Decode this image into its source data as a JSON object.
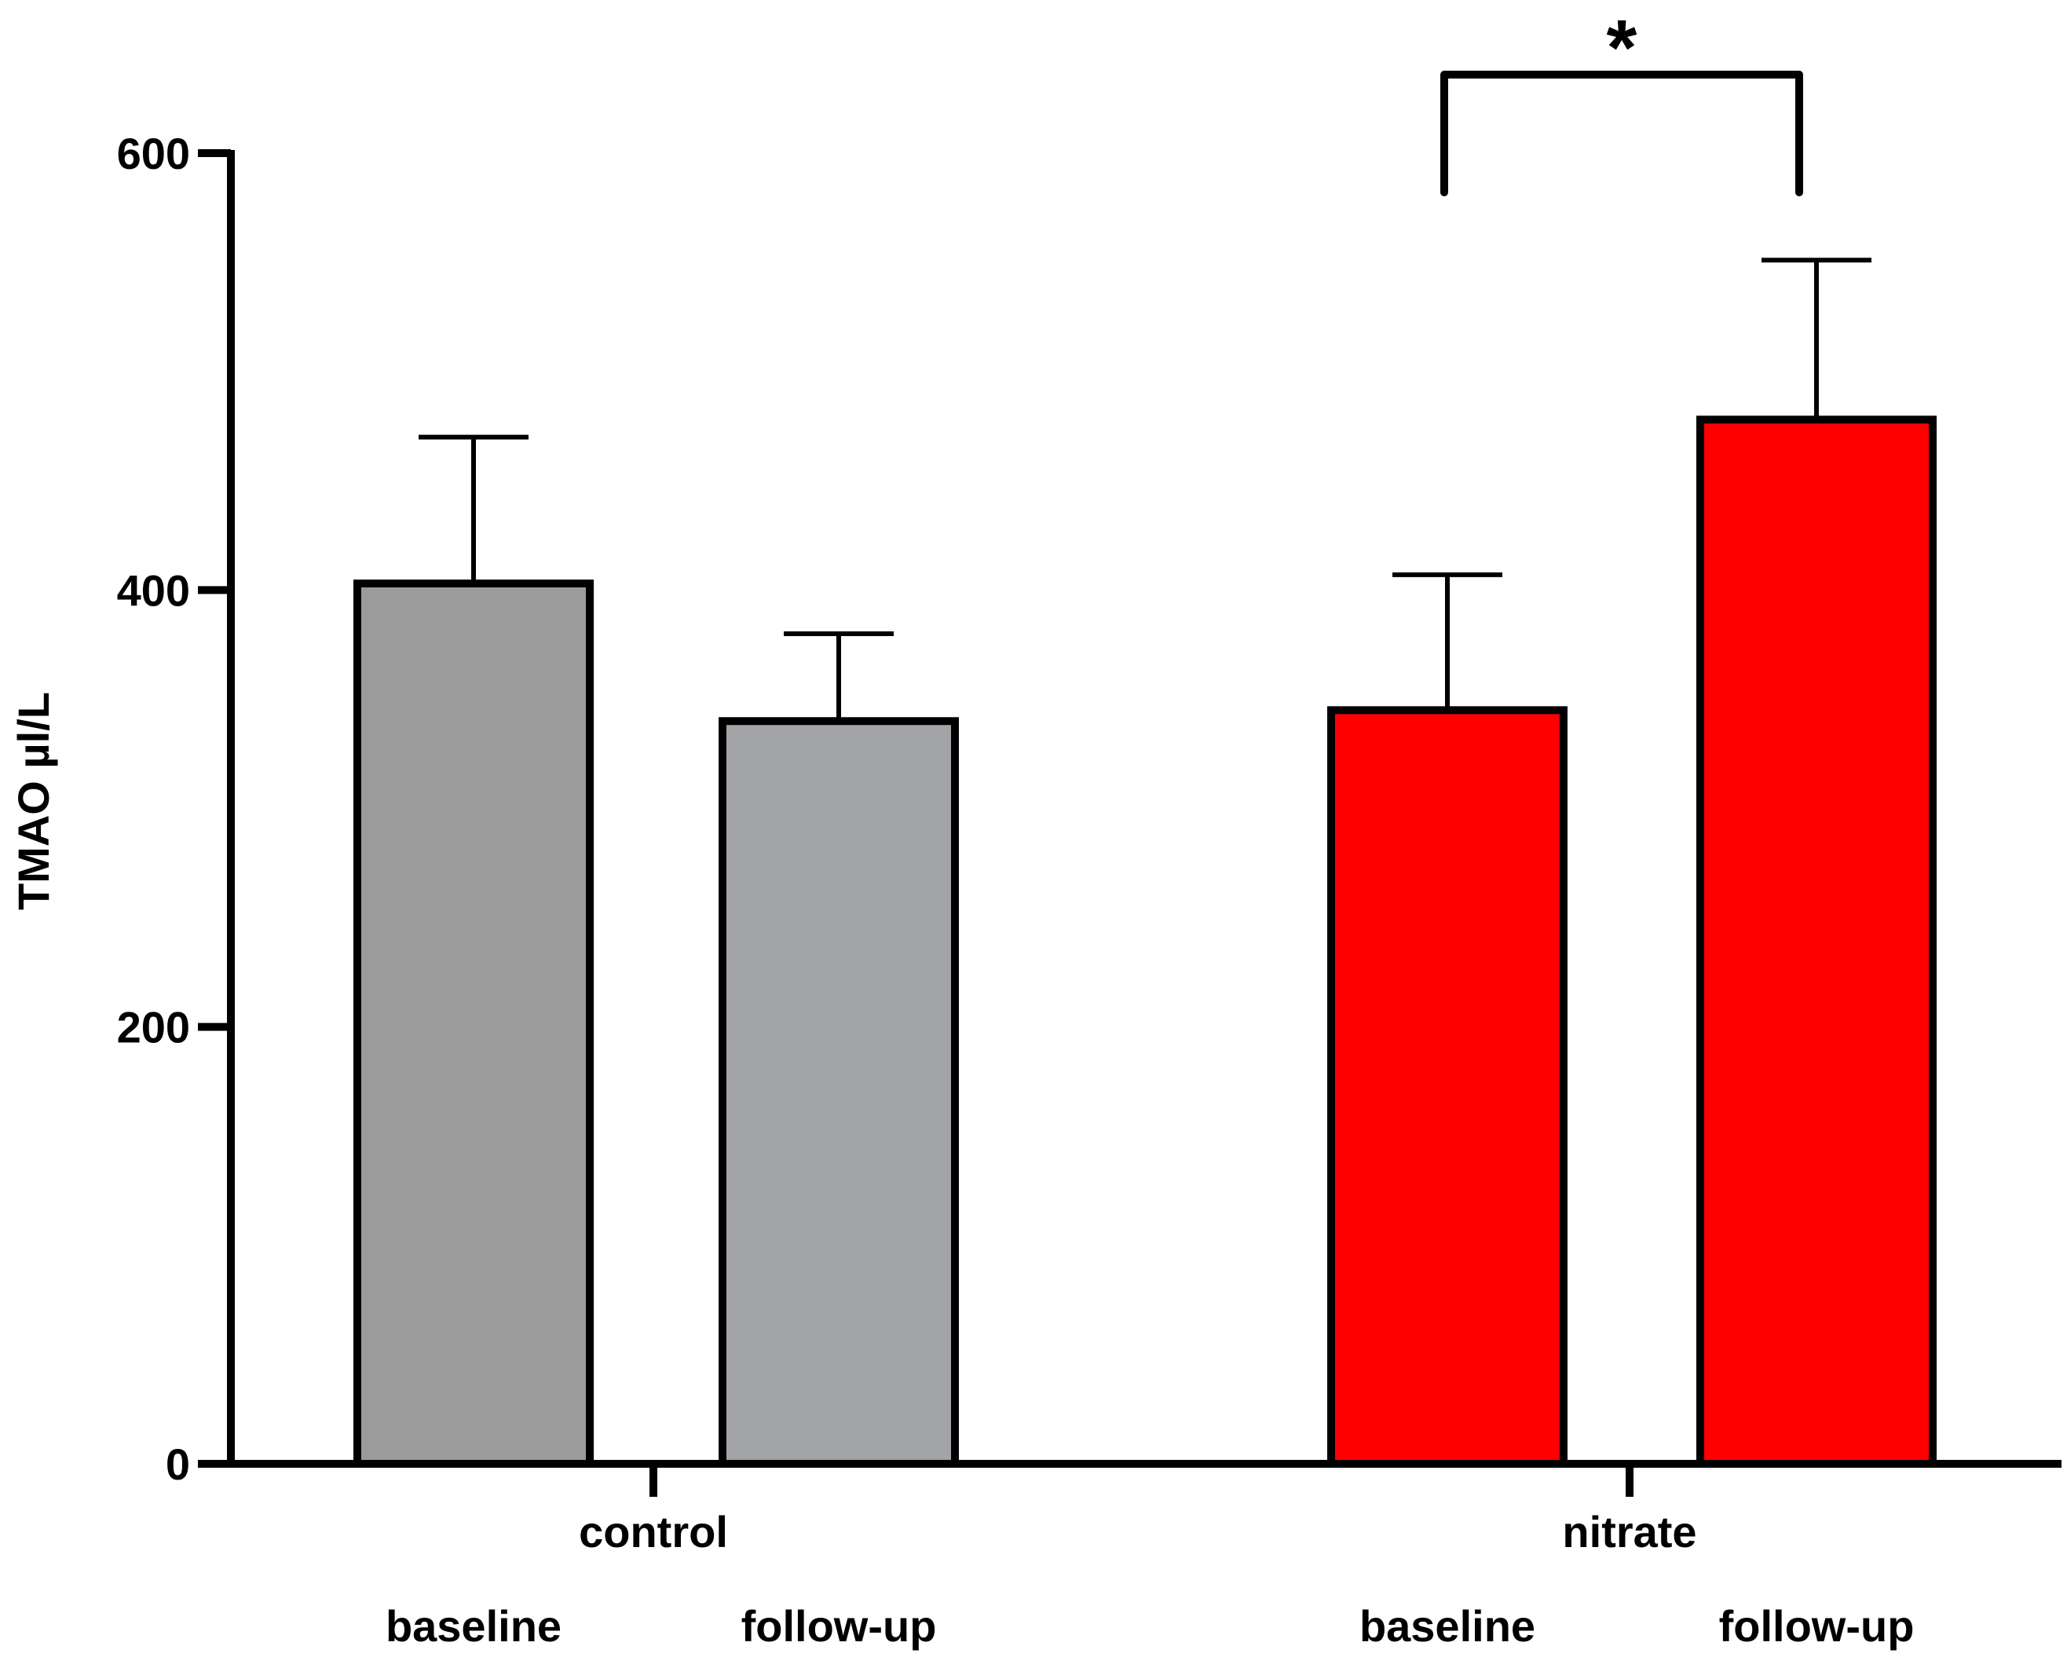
{
  "chart_data": {
    "type": "bar",
    "title": "",
    "xlabel": "",
    "ylabel": "TMAO µl/L",
    "ylim": [
      0,
      600
    ],
    "yticks": [
      0,
      200,
      400,
      600
    ],
    "ytick_labels": [
      "0",
      "200",
      "400",
      "600"
    ],
    "groups": [
      {
        "name": "control",
        "bars": [
          {
            "condition": "baseline",
            "value": 403,
            "error": 67,
            "color": "#9b9b9b"
          },
          {
            "condition": "follow-up",
            "value": 340,
            "error": 40,
            "color": "#a3a4a8"
          }
        ]
      },
      {
        "name": "nitrate",
        "bars": [
          {
            "condition": "baseline",
            "value": 345,
            "error": 62,
            "color": "#ff0000"
          },
          {
            "condition": "follow-up",
            "value": 478,
            "error": 73,
            "color": "#ff0000"
          }
        ]
      }
    ],
    "significance": [
      {
        "group": "nitrate",
        "from": "baseline",
        "to": "follow-up",
        "label": "*"
      }
    ],
    "edge_color": "#000000",
    "grid": false,
    "legend": "none"
  }
}
